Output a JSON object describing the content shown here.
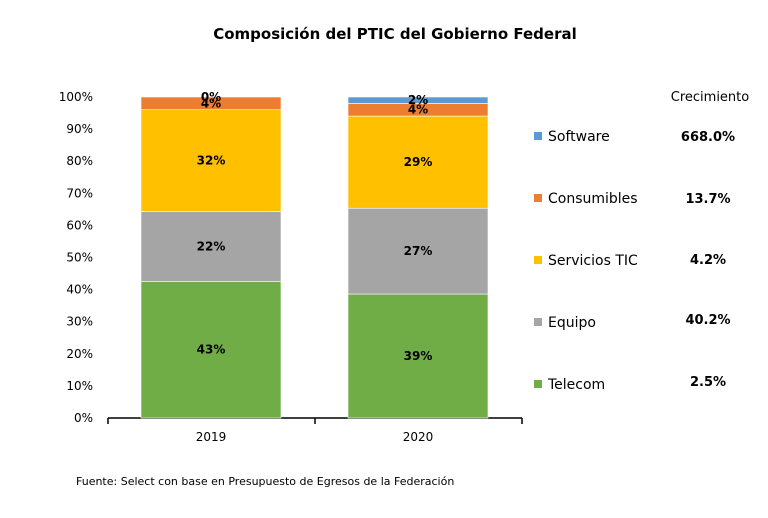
{
  "chart_data": {
    "type": "bar",
    "stacked": true,
    "title": "Composición  del PTIC del Gobierno Federal",
    "categories": [
      "2019",
      "2020"
    ],
    "ylim": [
      0,
      100
    ],
    "yticks": [
      "0%",
      "10%",
      "20%",
      "30%",
      "40%",
      "50%",
      "60%",
      "70%",
      "80%",
      "90%",
      "100%"
    ],
    "series": [
      {
        "name": "Telecom",
        "color": "#70AD47",
        "values": [
          43,
          39
        ],
        "labels": [
          "43%",
          "39%"
        ]
      },
      {
        "name": "Equipo",
        "color": "#A5A5A5",
        "values": [
          22,
          27
        ],
        "labels": [
          "22%",
          "27%"
        ]
      },
      {
        "name": "Servicios TIC",
        "color": "#FFC000",
        "values": [
          32,
          29
        ],
        "labels": [
          "32%",
          "29%"
        ]
      },
      {
        "name": "Consumibles",
        "color": "#ED7D31",
        "values": [
          4,
          4
        ],
        "labels": [
          "4%",
          "4%"
        ]
      },
      {
        "name": "Software",
        "color": "#5B9BD5",
        "values": [
          0,
          2
        ],
        "labels": [
          "0%",
          "2%"
        ]
      }
    ],
    "legend_order": [
      "Software",
      "Consumibles",
      "Servicios TIC",
      "Equipo",
      "Telecom"
    ],
    "legend_placement": "right",
    "growth_header": "Crecimiento",
    "growth": {
      "Software": "668.0%",
      "Consumibles": "13.7%",
      "Servicios TIC": "4.2%",
      "Equipo": "40.2%",
      "Telecom": "2.5%"
    },
    "grid": false
  },
  "source": "Fuente: Select con base en Presupuesto de Egresos de la Federación"
}
